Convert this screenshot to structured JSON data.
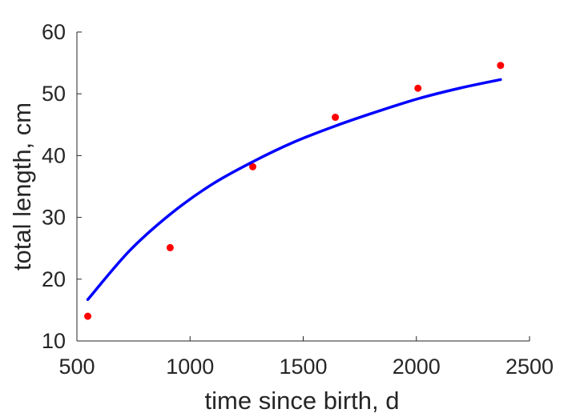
{
  "chart_data": {
    "type": "scatter",
    "xlabel": "time since birth, d",
    "ylabel": "total length, cm",
    "xlim": [
      500,
      2500
    ],
    "ylim": [
      10,
      60
    ],
    "xticks": [
      500,
      1000,
      1500,
      2000,
      2500
    ],
    "yticks": [
      10,
      20,
      30,
      40,
      50,
      60
    ],
    "grid": false,
    "series": [
      {
        "kind": "points",
        "color": "#ff0000",
        "x": [
          548,
          912,
          1277,
          1642,
          2007,
          2372
        ],
        "y": [
          14.0,
          25.1,
          38.2,
          46.2,
          50.9,
          54.6
        ]
      },
      {
        "kind": "curve",
        "color": "#0000ff",
        "x": [
          548,
          730,
          912,
          1095,
          1277,
          1460,
          1642,
          1825,
          2007,
          2190,
          2372
        ],
        "y": [
          16.7,
          24.5,
          30.5,
          35.3,
          39.0,
          42.2,
          44.8,
          47.1,
          49.2,
          50.9,
          52.3
        ]
      }
    ]
  }
}
